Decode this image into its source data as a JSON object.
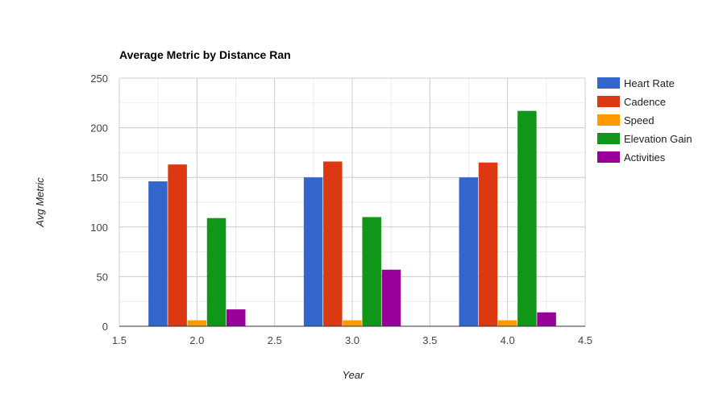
{
  "chart_data": {
    "type": "bar",
    "title": "Average Metric by Distance Ran",
    "xlabel": "Year",
    "ylabel": "Avg Metric",
    "x": [
      2.0,
      3.0,
      4.0
    ],
    "series": [
      {
        "name": "Heart Rate",
        "color": "#3366cc",
        "values": [
          146,
          150,
          150
        ]
      },
      {
        "name": "Cadence",
        "color": "#dc3912",
        "values": [
          163,
          166,
          165
        ]
      },
      {
        "name": "Speed",
        "color": "#ff9900",
        "values": [
          6,
          6,
          6
        ]
      },
      {
        "name": "Elevation Gain",
        "color": "#109618",
        "values": [
          109,
          110,
          217
        ]
      },
      {
        "name": "Activities",
        "color": "#990099",
        "values": [
          17,
          57,
          14
        ]
      }
    ],
    "xlim": [
      1.5,
      4.5
    ],
    "ylim": [
      0,
      250
    ],
    "x_ticks": [
      "1.5",
      "2.0",
      "2.5",
      "3.0",
      "3.5",
      "4.0",
      "4.5"
    ],
    "y_ticks": [
      "0",
      "50",
      "100",
      "150",
      "200",
      "250"
    ],
    "grid": true,
    "legend_position": "right"
  }
}
